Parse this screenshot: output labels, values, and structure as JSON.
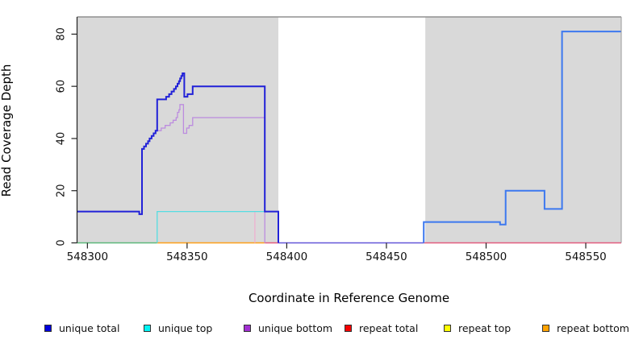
{
  "chart_data": {
    "type": "line",
    "subtype": "step-coverage",
    "title": "",
    "xlabel": "Coordinate in Reference Genome",
    "ylabel": "Read Coverage Depth",
    "xlim": [
      548294.8,
      548567.8
    ],
    "ylim": [
      0,
      86.6
    ],
    "x_ticks": [
      548300,
      548350,
      548400,
      548450,
      548500,
      548550
    ],
    "y_ticks": [
      0,
      20,
      40,
      60,
      80
    ],
    "grid": "off",
    "plot_bg": "#d9d9d9",
    "masked_region": {
      "x0": 548395.8,
      "x1": 548469.5,
      "color": "#ffffff"
    },
    "series": [
      {
        "name": "unique top",
        "color": "#55DDE2",
        "width": 1.3,
        "points": [
          [
            548335,
            0
          ],
          [
            548335,
            12
          ],
          [
            548395.8,
            12
          ],
          [
            548395.8,
            0
          ]
        ]
      },
      {
        "name": "unique bottom",
        "color": "#BC8CDF",
        "width": 1.3,
        "points": [
          [
            548335,
            43
          ],
          [
            548337,
            43
          ],
          [
            548337,
            44
          ],
          [
            548339,
            44
          ],
          [
            548339,
            45
          ],
          [
            548341.5,
            45
          ],
          [
            548341.5,
            46
          ],
          [
            548343,
            46
          ],
          [
            548343,
            47
          ],
          [
            548344.5,
            47
          ],
          [
            548344.5,
            48
          ],
          [
            548345.2,
            48
          ],
          [
            548345.2,
            50
          ],
          [
            548345.9,
            50
          ],
          [
            548345.9,
            51
          ],
          [
            548346.4,
            51
          ],
          [
            548346.4,
            53
          ],
          [
            548348.2,
            53
          ],
          [
            548348.2,
            42
          ],
          [
            548349.8,
            42
          ],
          [
            548349.8,
            44
          ],
          [
            548351,
            44
          ],
          [
            548351,
            45
          ],
          [
            548352.8,
            45
          ],
          [
            548352.8,
            48
          ],
          [
            548389,
            48
          ],
          [
            548389,
            0
          ]
        ]
      },
      {
        "name": "unique total",
        "width": 2,
        "segments": [
          {
            "color": "#2121D8",
            "points": [
              [
                548294.8,
                12
              ],
              [
                548326,
                12
              ],
              [
                548326,
                11
              ],
              [
                548327.4,
                11
              ],
              [
                548327.4,
                36
              ],
              [
                548328.4,
                36
              ],
              [
                548328.4,
                37
              ],
              [
                548329.4,
                37
              ],
              [
                548329.4,
                38
              ],
              [
                548330.4,
                38
              ],
              [
                548330.4,
                39
              ],
              [
                548331.2,
                39
              ],
              [
                548331.2,
                40
              ],
              [
                548332.2,
                40
              ],
              [
                548332.2,
                41
              ],
              [
                548333.2,
                41
              ],
              [
                548333.2,
                42
              ],
              [
                548334.2,
                42
              ],
              [
                548334.2,
                43
              ],
              [
                548335,
                43
              ],
              [
                548335,
                55
              ],
              [
                548339.5,
                55
              ],
              [
                548339.5,
                56
              ],
              [
                548341,
                56
              ],
              [
                548341,
                57
              ],
              [
                548342.2,
                57
              ],
              [
                548342.2,
                58
              ],
              [
                548343.4,
                58
              ],
              [
                548343.4,
                59
              ],
              [
                548344.4,
                59
              ],
              [
                548344.4,
                60
              ],
              [
                548345.2,
                60
              ],
              [
                548345.2,
                61
              ],
              [
                548345.9,
                61
              ],
              [
                548345.9,
                62
              ],
              [
                548346.5,
                62
              ],
              [
                548346.5,
                63
              ],
              [
                548347.1,
                63
              ],
              [
                548347.1,
                64
              ],
              [
                548347.7,
                64
              ],
              [
                548347.7,
                65
              ],
              [
                548348.6,
                65
              ],
              [
                548348.6,
                56
              ],
              [
                548350.2,
                56
              ],
              [
                548350.2,
                57
              ],
              [
                548352.8,
                57
              ],
              [
                548352.8,
                60
              ],
              [
                548389,
                60
              ],
              [
                548389,
                12
              ],
              [
                548395.8,
                12
              ],
              [
                548395.8,
                0
              ]
            ]
          },
          {
            "color": "#3C78EF",
            "points": [
              [
                548468.7,
                0
              ],
              [
                548468.7,
                8
              ],
              [
                548507,
                8
              ],
              [
                548507,
                7
              ],
              [
                548509.8,
                7
              ],
              [
                548509.8,
                20
              ],
              [
                548529.3,
                20
              ],
              [
                548529.3,
                13
              ],
              [
                548538.1,
                13
              ],
              [
                548538.1,
                81
              ],
              [
                548567.8,
                81
              ]
            ]
          }
        ]
      }
    ],
    "zero_line_segments": [
      {
        "name": "unique-top-at-zero-over-repeat",
        "color": "#5CB87A",
        "x0": 548294.8,
        "x1": 548335
      },
      {
        "name": "repeat bottom",
        "color": "#FFA018",
        "x0": 548335,
        "x1": 548389
      },
      {
        "name": "repeat total",
        "color": "#E25B7E",
        "x0": 548389,
        "x1": 548395.8
      },
      {
        "name": "unique-total-at-zero",
        "color": "#6356D8",
        "x0": 548395.8,
        "x1": 548468.7
      },
      {
        "name": "repeat total",
        "color": "#E25B7E",
        "x0": 548468.7,
        "x1": 548567.8
      }
    ],
    "faint_spike": {
      "color": "#EEB0CF",
      "x": 548384,
      "y0": 0,
      "y1": 12,
      "width": 1.3
    },
    "legend_position": "bottom-horizontal"
  },
  "axes": {
    "x_tick_labels": [
      "548300",
      "548350",
      "548400",
      "548450",
      "548500",
      "548550"
    ],
    "y_tick_labels": [
      "0",
      "20",
      "40",
      "60",
      "80"
    ]
  },
  "legend": {
    "items": [
      {
        "label": "unique total",
        "color": "#0000DC"
      },
      {
        "label": "unique top",
        "color": "#00F5F5"
      },
      {
        "label": "unique bottom",
        "color": "#A22FD2"
      },
      {
        "label": "repeat total",
        "color": "#F50000"
      },
      {
        "label": "repeat top",
        "color": "#FFFF00"
      },
      {
        "label": "repeat bottom",
        "color": "#FFA300"
      }
    ]
  },
  "colors": {
    "plot_background": "#d9d9d9",
    "masked_band": "#ffffff",
    "border_top": "#8f8f8f",
    "border_left": "#222222",
    "border_right": "#9a9a9a",
    "tick": "#222222",
    "tick_label": "#111111"
  }
}
